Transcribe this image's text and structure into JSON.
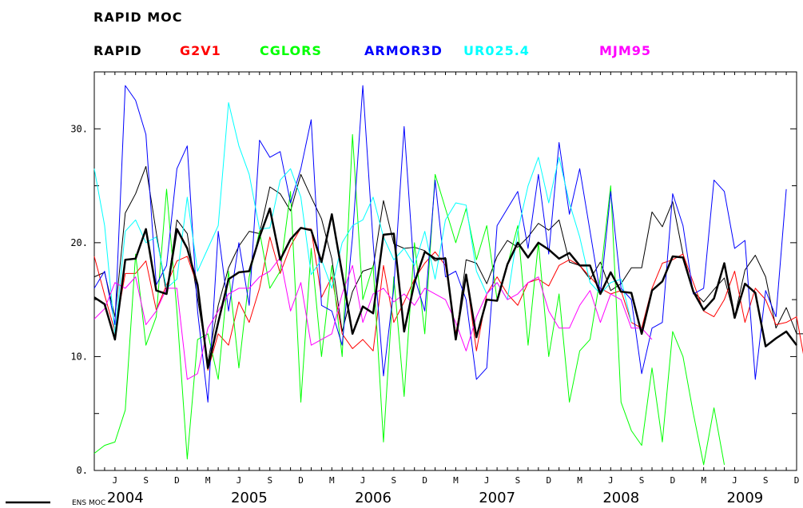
{
  "chart_data": {
    "type": "line",
    "title": "RAPID MOC",
    "xlabel": "",
    "ylabel": "",
    "ylim": [
      0,
      35
    ],
    "yticks": [
      "0.",
      "10.",
      "20.",
      "30."
    ],
    "x_start": "2004-04",
    "month_ticks": [
      "J",
      "S",
      "D",
      "M",
      "J",
      "S",
      "D",
      "M",
      "J",
      "S",
      "D",
      "M",
      "J",
      "S",
      "D",
      "M",
      "J",
      "S",
      "D",
      "M",
      "J",
      "S",
      "D"
    ],
    "year_labels": [
      "2004",
      "2005",
      "2006",
      "2007",
      "2008",
      "2009"
    ],
    "ens_label": "ENS MOC",
    "series": [
      {
        "name": "RAPID",
        "color": "#000000",
        "width": 1,
        "values": [
          17.0,
          17.4,
          13.5,
          22.6,
          24.3,
          26.7,
          20.9,
          15.5,
          22.0,
          20.8,
          15.1,
          9.5,
          14.5,
          17.8,
          19.7,
          21.0,
          20.8,
          24.9,
          24.3,
          22.8,
          26.0,
          24.0,
          22.1,
          18.6,
          12.2,
          15.7,
          17.5,
          17.8,
          23.7,
          19.9,
          19.5,
          19.6,
          19.3,
          18.4,
          18.7,
          11.5,
          18.5,
          18.2,
          16.4,
          18.8,
          20.2,
          19.6,
          20.5,
          21.7,
          21.1,
          22.0,
          18.3,
          18.0,
          16.8,
          18.3,
          15.8,
          16.4,
          17.8,
          17.8,
          22.7,
          21.4,
          23.6,
          19.0,
          15.7,
          14.8,
          15.9,
          16.9,
          13.5,
          17.6,
          18.9,
          17.0,
          12.5,
          14.3,
          12.0,
          12.0
        ]
      },
      {
        "name": "G2V1",
        "color": "#ff0000",
        "width": 1,
        "values": [
          18.8,
          15.4,
          12.2,
          17.3,
          17.3,
          18.4,
          14.1,
          16.3,
          18.4,
          18.8,
          16.2,
          8.8,
          12.0,
          11.0,
          14.8,
          13.0,
          16.0,
          20.5,
          17.3,
          19.7,
          21.3,
          21.2,
          15.2,
          17.0,
          12.0,
          10.7,
          11.5,
          10.5,
          18.0,
          13.0,
          14.8,
          16.8,
          18.2,
          19.2,
          18.0,
          12.0,
          17.2,
          10.5,
          15.5,
          17.0,
          15.5,
          14.5,
          16.5,
          16.8,
          16.2,
          18.0,
          18.5,
          18.0,
          17.0,
          16.0,
          15.5,
          15.8,
          13.0,
          12.5,
          16.0,
          18.2,
          18.5,
          19.0,
          16.5,
          14.0,
          13.5,
          15.0,
          17.5,
          13.0,
          16.0,
          15.0,
          12.8,
          13.0,
          13.5,
          8.5
        ]
      },
      {
        "name": "CGLORS",
        "color": "#00ff00",
        "width": 1,
        "values": [
          1.5,
          2.2,
          2.5,
          5.3,
          19.0,
          11.0,
          13.5,
          24.7,
          14.0,
          1.0,
          11.5,
          12.0,
          8.0,
          17.5,
          9.0,
          17.0,
          21.0,
          16.0,
          17.5,
          24.5,
          6.0,
          19.5,
          10.0,
          18.0,
          10.0,
          29.5,
          15.0,
          18.0,
          2.5,
          17.0,
          6.5,
          20.0,
          12.0,
          26.0,
          23.0,
          20.0,
          23.0,
          18.5,
          21.5,
          15.0,
          18.0,
          21.5,
          11.0,
          20.0,
          10.0,
          15.5,
          6.0,
          10.5,
          11.5,
          17.0,
          25.0,
          6.0,
          3.5,
          2.2,
          9.0,
          2.5,
          12.2,
          10.0,
          5.0,
          0.5,
          5.5,
          0.5
        ]
      },
      {
        "name": "ARMOR3D",
        "color": "#0000ff",
        "width": 1,
        "values": [
          16.0,
          17.5,
          12.8,
          33.8,
          32.5,
          29.5,
          16.3,
          18.0,
          26.5,
          28.5,
          14.0,
          6.0,
          21.0,
          14.0,
          20.0,
          14.5,
          29.0,
          27.5,
          28.0,
          23.5,
          26.5,
          30.8,
          14.5,
          14.0,
          11.0,
          20.5,
          33.8,
          20.0,
          8.3,
          16.0,
          30.2,
          17.0,
          14.0,
          25.5,
          17.0,
          17.5,
          15.0,
          8.0,
          9.0,
          21.5,
          23.0,
          24.5,
          19.5,
          26.0,
          19.0,
          28.8,
          22.5,
          26.5,
          21.0,
          15.5,
          24.5,
          16.0,
          15.0,
          8.5,
          12.5,
          13.0,
          24.3,
          21.5,
          15.5,
          16.0,
          25.5,
          24.5,
          19.5,
          20.2,
          8.0,
          15.8,
          13.5,
          24.7
        ]
      },
      {
        "name": "UR025.4",
        "color": "#00ffff",
        "width": 1,
        "values": [
          26.5,
          21.5,
          12.0,
          21.0,
          22.0,
          20.0,
          20.5,
          16.0,
          16.8,
          24.0,
          17.5,
          19.5,
          21.5,
          32.3,
          28.5,
          26.0,
          21.2,
          21.3,
          25.5,
          26.5,
          24.0,
          17.2,
          18.5,
          16.0,
          20.0,
          21.5,
          22.0,
          24.0,
          20.5,
          18.5,
          19.5,
          18.0,
          21.0,
          16.8,
          22.0,
          23.5,
          23.3,
          17.5,
          15.5,
          16.5,
          15.0,
          21.0,
          25.0,
          27.5,
          23.5,
          27.5,
          23.5,
          20.5,
          16.5,
          15.5,
          16.5,
          16.8,
          13.0
        ]
      },
      {
        "name": "MJM95",
        "color": "#ff00ff",
        "width": 1,
        "values": [
          13.3,
          14.2,
          16.5,
          16.0,
          17.0,
          12.8,
          14.0,
          16.0,
          16.0,
          8.0,
          8.5,
          12.5,
          14.0,
          15.5,
          16.0,
          16.0,
          17.0,
          17.5,
          18.7,
          14.0,
          16.5,
          11.0,
          11.5,
          12.0,
          15.5,
          18.0,
          13.0,
          15.5,
          16.0,
          14.8,
          15.5,
          14.5,
          16.0,
          15.5,
          15.0,
          13.0,
          10.5,
          13.5,
          15.5,
          16.5,
          15.0,
          15.5,
          16.5,
          17.0,
          14.0,
          12.5,
          12.5,
          14.5,
          15.8,
          13.0,
          15.5,
          15.0,
          12.5,
          12.5,
          11.5
        ]
      },
      {
        "name": "ENS MOC",
        "color": "#000000",
        "width": 2.5,
        "values": [
          15.2,
          14.6,
          11.5,
          18.5,
          18.6,
          21.2,
          15.8,
          15.5,
          21.2,
          19.5,
          16.3,
          9.0,
          13.0,
          16.8,
          17.4,
          17.5,
          20.5,
          23.0,
          18.5,
          20.3,
          21.3,
          21.1,
          18.3,
          22.5,
          17.3,
          12.0,
          14.4,
          13.8,
          20.7,
          20.8,
          12.2,
          16.5,
          19.2,
          18.6,
          18.6,
          11.5,
          17.2,
          11.7,
          15.0,
          14.9,
          18.1,
          20.0,
          18.7,
          20.0,
          19.4,
          18.6,
          19.1,
          18.0,
          18.0,
          15.5,
          17.4,
          15.7,
          15.6,
          12.0,
          15.8,
          16.6,
          18.8,
          18.7,
          15.7,
          14.1,
          15.1,
          18.2,
          13.4,
          16.4,
          15.6,
          10.9,
          11.6,
          12.2,
          11.0
        ]
      }
    ]
  }
}
